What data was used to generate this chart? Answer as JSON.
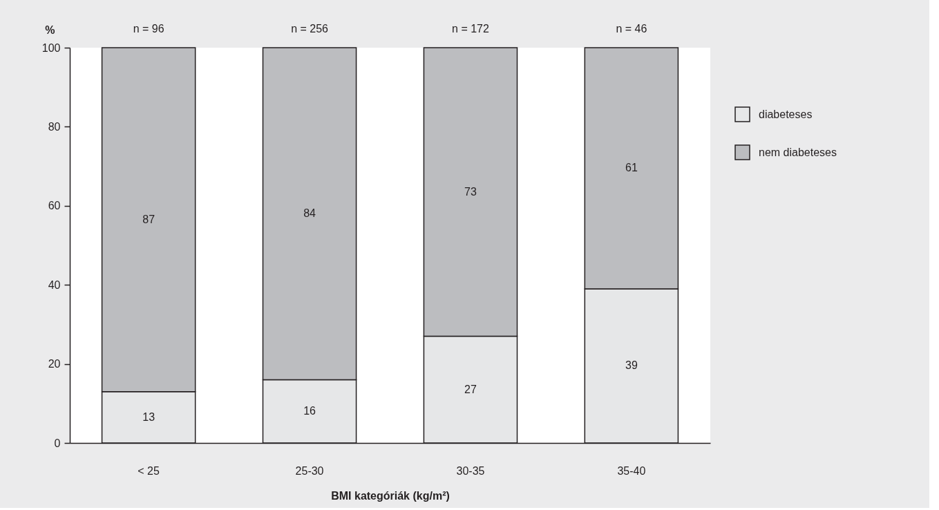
{
  "chart_data": {
    "type": "bar",
    "stacked": true,
    "ylabel": "%",
    "xlabel": "BMI kategóriák (kg/m²)",
    "categories": [
      "< 25",
      "25-30",
      "30-35",
      "35-40"
    ],
    "series": [
      {
        "name": "diabeteses",
        "color": "#e6e7e8",
        "values": [
          13,
          16,
          27,
          39
        ]
      },
      {
        "name": "nem diabeteses",
        "color": "#bcbdc0",
        "values": [
          87,
          84,
          73,
          61
        ]
      }
    ],
    "ylim": [
      0,
      100
    ],
    "yticks": [
      0,
      20,
      40,
      60,
      80,
      100
    ],
    "data_labels": true,
    "legend": "top right",
    "grid": false,
    "annotations": [
      "n = 96",
      "n = 256",
      "n = 172",
      "n = 46"
    ]
  }
}
